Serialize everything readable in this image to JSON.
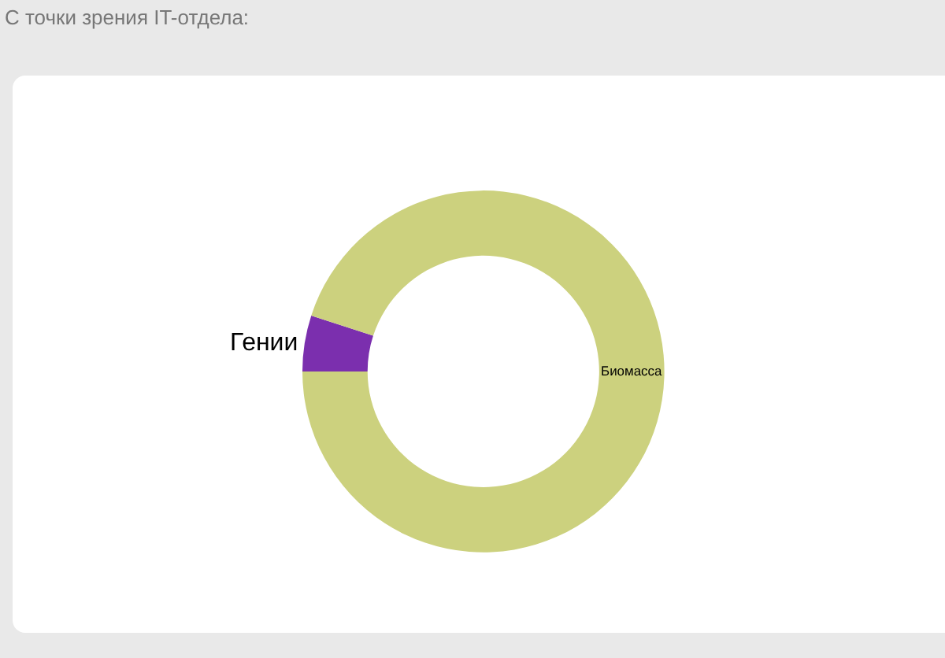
{
  "chart_data": {
    "type": "donut",
    "title": "С точки зрения IT-отдела:",
    "categories": [
      "Гении",
      "Биомасса"
    ],
    "values": [
      5,
      95
    ],
    "colors": [
      "#7b2fae",
      "#ccd17e"
    ]
  }
}
